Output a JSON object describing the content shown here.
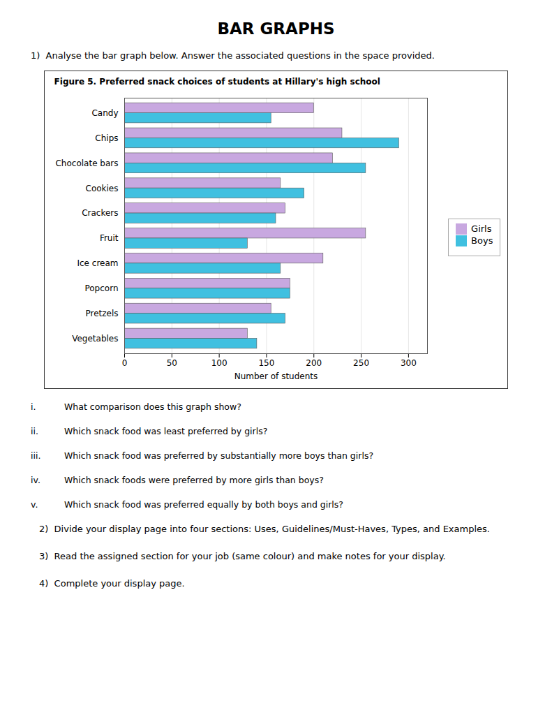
{
  "title": "BAR GRAPHS",
  "question_1": "1)  Analyse the bar graph below. Answer the associated questions in the space provided.",
  "chart_data": {
    "type": "bar",
    "orientation": "horizontal",
    "title": "Figure 5. Preferred snack choices of students at Hillary's high school",
    "categories": [
      "Candy",
      "Chips",
      "Chocolate bars",
      "Cookies",
      "Crackers",
      "Fruit",
      "Ice cream",
      "Popcorn",
      "Pretzels",
      "Vegetables"
    ],
    "series": [
      {
        "name": "Girls",
        "color": "#C8A8E0",
        "values": [
          200,
          230,
          220,
          165,
          170,
          255,
          210,
          175,
          155,
          130
        ]
      },
      {
        "name": "Boys",
        "color": "#40C0E0",
        "values": [
          155,
          290,
          255,
          190,
          160,
          130,
          165,
          175,
          170,
          140
        ]
      }
    ],
    "xlabel": "Number of students",
    "xlim": [
      0,
      320
    ],
    "xticks": [
      0,
      50,
      100,
      150,
      200,
      250,
      300
    ],
    "grid": true,
    "legend": "right"
  },
  "sub_questions": [
    [
      "i.",
      "What comparison does this graph show?"
    ],
    [
      "ii.",
      "Which snack food was least preferred by girls?"
    ],
    [
      "iii.",
      "Which snack food was preferred by substantially more boys than girls?"
    ],
    [
      "iv.",
      "Which snack foods were preferred by more girls than boys?"
    ],
    [
      "v.",
      "Which snack food was preferred equally by both boys and girls?"
    ]
  ],
  "numbered_items": [
    "2)  Divide your display page into four sections: Uses, Guidelines/Must-Haves, Types, and Examples.",
    "3)  Read the assigned section for your job (same colour) and make notes for your display.",
    "4)  Complete your display page."
  ]
}
